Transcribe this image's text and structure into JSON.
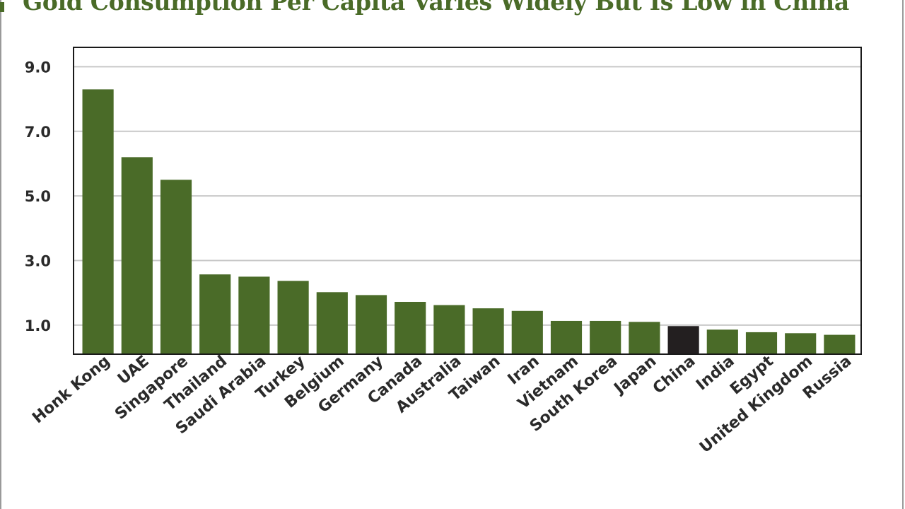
{
  "title": "Gold Consumption Per Capita Varies Widely But Is Low in China",
  "colors": {
    "bar": "#4a6b28",
    "highlight": "#231f20",
    "title": "#4a6b28",
    "grid": "#c8c8c8"
  },
  "chart_data": {
    "type": "bar",
    "title": "Gold Consumption Per Capita Varies Widely But Is Low in China",
    "categories": [
      "Honk Kong",
      "UAE",
      "Singapore",
      "Thailand",
      "Saudi Arabia",
      "Turkey",
      "Belgium",
      "Germany",
      "Canada",
      "Australia",
      "Taiwan",
      "Iran",
      "Vietnam",
      "South Korea",
      "Japan",
      "China",
      "India",
      "Egypt",
      "United Kingdom",
      "Russia"
    ],
    "values": [
      8.3,
      6.2,
      5.5,
      2.57,
      2.5,
      2.37,
      2.02,
      1.93,
      1.72,
      1.62,
      1.52,
      1.44,
      1.13,
      1.13,
      1.1,
      0.97,
      0.86,
      0.78,
      0.75,
      0.7
    ],
    "highlight_category": "China",
    "yticks": [
      "1.0",
      "3.0",
      "5.0",
      "7.0",
      "9.0"
    ],
    "ylim": [
      0.1,
      9.6
    ],
    "grid": true,
    "xlabel": "",
    "ylabel": ""
  }
}
